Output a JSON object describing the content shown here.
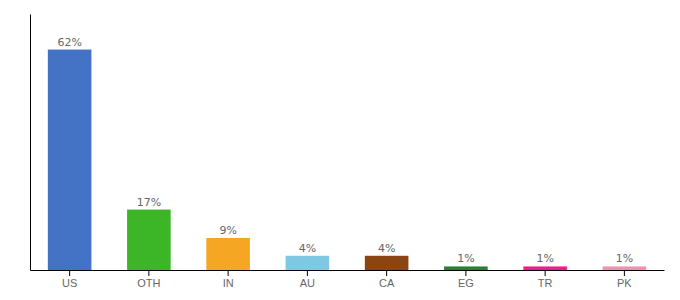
{
  "chart_data": {
    "type": "bar",
    "categories": [
      "US",
      "OTH",
      "IN",
      "AU",
      "CA",
      "EG",
      "TR",
      "PK"
    ],
    "values": [
      62,
      17,
      9,
      4,
      4,
      1,
      1,
      1
    ],
    "value_labels": [
      "62%",
      "17%",
      "9%",
      "4%",
      "4%",
      "1%",
      "1%",
      "1%"
    ],
    "colors": [
      "#4472C4",
      "#3CB527",
      "#F5A623",
      "#7EC8E3",
      "#8B4513",
      "#2E7D32",
      "#E91E8C",
      "#F48FB1"
    ],
    "ylim": [
      0,
      72
    ],
    "grid": false,
    "data_labels": true,
    "tick_labels": "x"
  }
}
